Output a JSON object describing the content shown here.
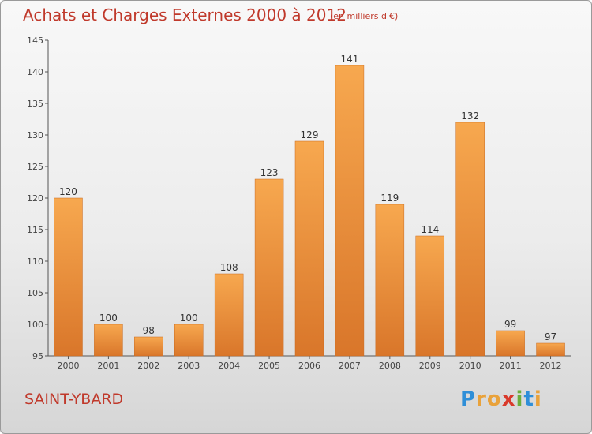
{
  "title": "Achats et Charges Externes 2000 à 2012",
  "subtitle": "(en milliers d'€)",
  "place": "SAINT-YBARD",
  "logo": {
    "letters": [
      "P",
      "r",
      "o",
      "x",
      "i",
      "t",
      "i"
    ],
    "colors": [
      "#2f8fd8",
      "#e9a23b",
      "#e9a23b",
      "#d93a2b",
      "#6cae3c",
      "#2f8fd8",
      "#e9a23b"
    ]
  },
  "colors": {
    "bar_light": "#f7a84f",
    "bar_dark": "#d9762a",
    "title": "#c0392b"
  },
  "chart_data": {
    "type": "bar",
    "categories": [
      "2000",
      "2001",
      "2002",
      "2003",
      "2004",
      "2005",
      "2006",
      "2007",
      "2008",
      "2009",
      "2010",
      "2011",
      "2012"
    ],
    "values": [
      120,
      100,
      98,
      100,
      108,
      123,
      129,
      141,
      119,
      114,
      132,
      99,
      97
    ],
    "ylim": [
      95,
      145
    ],
    "yticks": [
      95,
      100,
      105,
      110,
      115,
      120,
      125,
      130,
      135,
      140,
      145
    ],
    "grid": false,
    "data_labels": true
  }
}
